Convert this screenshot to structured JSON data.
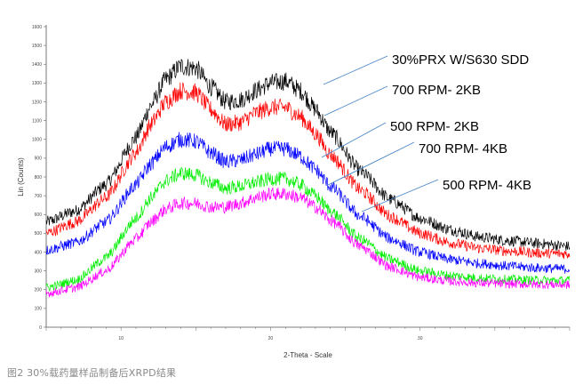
{
  "chart_data": {
    "type": "line",
    "xlabel": "2-Theta - Scale",
    "ylabel": "Lin (Counts)",
    "xlim": [
      5,
      40
    ],
    "ylim": [
      0,
      1600
    ],
    "x_ticks": [
      "10",
      "20",
      "30"
    ],
    "y_ticks": [
      "0",
      "100",
      "200",
      "300",
      "400",
      "500",
      "600",
      "700",
      "800",
      "900",
      "1000",
      "1100",
      "1200",
      "1300",
      "1400",
      "1500",
      "1600"
    ],
    "series": [
      {
        "name": "30%PRX W/S630 SDD",
        "color": "#000000",
        "x": [
          5,
          7,
          9,
          11,
          12,
          13,
          14,
          15,
          16,
          17,
          18,
          19,
          20,
          21,
          22,
          23,
          24,
          26,
          28,
          30,
          32,
          34,
          36,
          38,
          40
        ],
        "values": [
          560,
          620,
          760,
          1010,
          1180,
          1320,
          1390,
          1380,
          1280,
          1200,
          1210,
          1260,
          1300,
          1310,
          1260,
          1160,
          1040,
          830,
          680,
          580,
          520,
          480,
          460,
          445,
          430
        ]
      },
      {
        "name": "700 RPM- 2KB",
        "color": "#ff0000",
        "x": [
          5,
          7,
          9,
          11,
          12,
          13,
          14,
          15,
          16,
          17,
          18,
          19,
          20,
          21,
          22,
          23,
          24,
          26,
          28,
          30,
          32,
          34,
          36,
          38,
          40
        ],
        "values": [
          500,
          560,
          690,
          930,
          1080,
          1200,
          1260,
          1250,
          1160,
          1080,
          1090,
          1140,
          1170,
          1170,
          1120,
          1030,
          920,
          730,
          590,
          500,
          450,
          420,
          405,
          395,
          390
        ]
      },
      {
        "name": "500 RPM- 2KB",
        "color": "#0000ff",
        "x": [
          5,
          7,
          9,
          11,
          12,
          13,
          14,
          15,
          16,
          17,
          18,
          19,
          20,
          21,
          22,
          23,
          24,
          26,
          28,
          30,
          32,
          34,
          36,
          38,
          40
        ],
        "values": [
          410,
          450,
          560,
          760,
          870,
          960,
          1000,
          990,
          930,
          880,
          890,
          920,
          950,
          950,
          910,
          840,
          750,
          590,
          470,
          400,
          360,
          340,
          325,
          315,
          310
        ]
      },
      {
        "name": "700 RPM- 4KB",
        "color": "#00ee00",
        "x": [
          5,
          7,
          9,
          11,
          12,
          13,
          14,
          15,
          16,
          17,
          18,
          19,
          20,
          21,
          22,
          23,
          24,
          26,
          28,
          30,
          32,
          34,
          36,
          38,
          40
        ],
        "values": [
          210,
          250,
          370,
          580,
          690,
          780,
          820,
          810,
          770,
          740,
          750,
          770,
          790,
          790,
          760,
          700,
          620,
          470,
          360,
          300,
          275,
          262,
          255,
          250,
          248
        ]
      },
      {
        "name": "500 RPM- 4KB",
        "color": "#ff00ff",
        "x": [
          5,
          7,
          9,
          11,
          12,
          13,
          14,
          15,
          16,
          17,
          18,
          19,
          20,
          21,
          22,
          23,
          24,
          26,
          28,
          30,
          32,
          34,
          36,
          38,
          40
        ],
        "values": [
          180,
          210,
          300,
          470,
          560,
          630,
          660,
          660,
          640,
          640,
          660,
          690,
          710,
          710,
          690,
          640,
          570,
          430,
          320,
          265,
          245,
          235,
          230,
          228,
          226
        ]
      }
    ],
    "grid": false,
    "legend": "callout labels to the right of the curves"
  },
  "caption": "图2 30%载药量样品制备后XRPD结果"
}
